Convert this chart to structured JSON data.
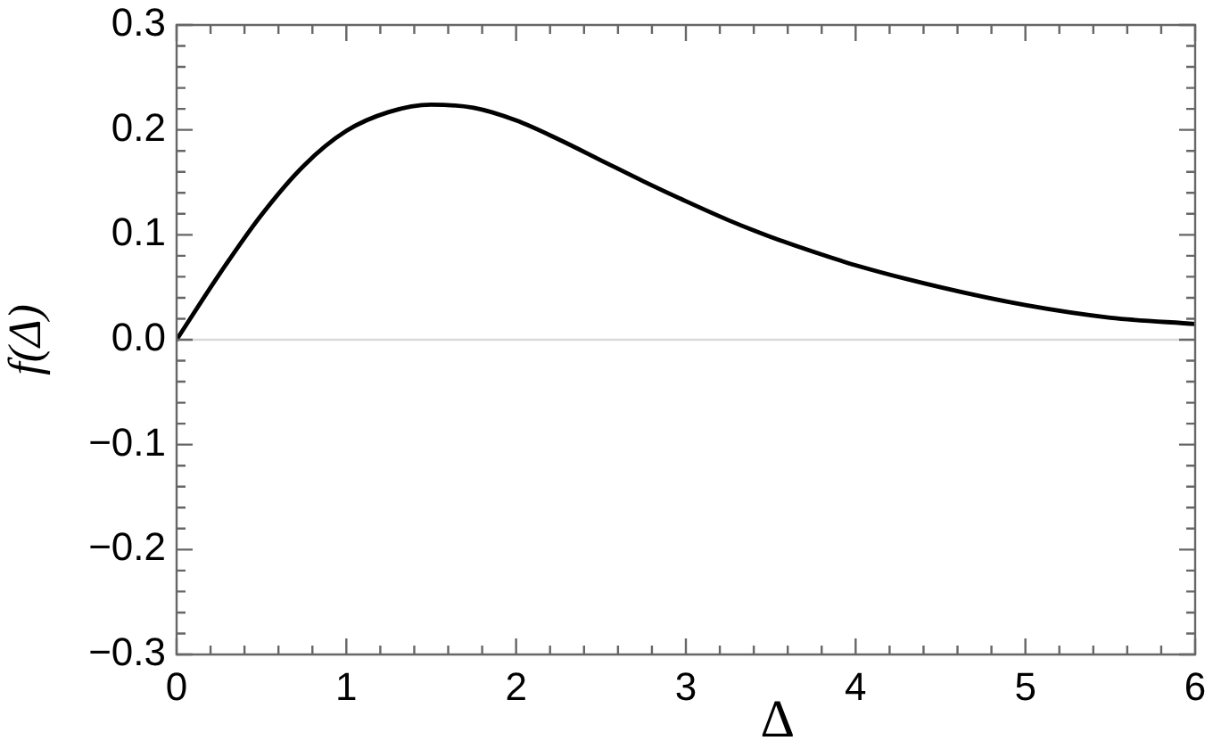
{
  "chart_data": {
    "type": "line",
    "xlabel": "Δ",
    "ylabel": "f(Δ)",
    "x": [
      0,
      0.25,
      0.5,
      0.75,
      1.0,
      1.25,
      1.5,
      1.75,
      2.0,
      2.25,
      2.5,
      2.75,
      3.0,
      3.25,
      3.5,
      3.75,
      4.0,
      4.5,
      5.0,
      5.5,
      6.0
    ],
    "series": [
      {
        "color": "#000000",
        "values": [
          0,
          0.062,
          0.119,
          0.166,
          0.199,
          0.217,
          0.224,
          0.221,
          0.209,
          0.191,
          0.171,
          0.151,
          0.132,
          0.114,
          0.098,
          0.084,
          0.071,
          0.05,
          0.033,
          0.021,
          0.015
        ]
      }
    ],
    "xlim": [
      0,
      6
    ],
    "ylim": [
      -0.3,
      0.3
    ],
    "xticks": [
      0,
      {
        "value": 0.2,
        "label": null
      },
      {
        "value": 0.4,
        "label": null
      },
      {
        "value": 0.6,
        "label": null
      },
      {
        "value": 0.8,
        "label": null
      },
      1,
      {
        "value": 1.2,
        "label": null
      },
      {
        "value": 1.4,
        "label": null
      },
      {
        "value": 1.6,
        "label": null
      },
      {
        "value": 1.8,
        "label": null
      },
      2,
      {
        "value": 2.2,
        "label": null
      },
      {
        "value": 2.4,
        "label": null
      },
      {
        "value": 2.6,
        "label": null
      },
      {
        "value": 2.8,
        "label": null
      },
      3,
      {
        "value": 3.2,
        "label": null
      },
      {
        "value": 3.4,
        "label": null
      },
      {
        "value": 3.6,
        "label": null
      },
      {
        "value": 3.8,
        "label": null
      },
      4,
      {
        "value": 4.2,
        "label": null
      },
      {
        "value": 4.4,
        "label": null
      },
      {
        "value": 4.6,
        "label": null
      },
      {
        "value": 4.8,
        "label": null
      },
      5,
      {
        "value": 5.2,
        "label": null
      },
      {
        "value": 5.4,
        "label": null
      },
      {
        "value": 5.6,
        "label": null
      },
      {
        "value": 5.8,
        "label": null
      },
      6
    ],
    "yticks": [
      {
        "value": -0.3,
        "label": "−0.3"
      },
      {
        "value": -0.28,
        "label": null
      },
      {
        "value": -0.26,
        "label": null
      },
      {
        "value": -0.24,
        "label": null
      },
      {
        "value": -0.22,
        "label": null
      },
      {
        "value": -0.2,
        "label": "−0.2"
      },
      {
        "value": -0.18,
        "label": null
      },
      {
        "value": -0.16,
        "label": null
      },
      {
        "value": -0.14,
        "label": null
      },
      {
        "value": -0.12,
        "label": null
      },
      {
        "value": -0.1,
        "label": "−0.1"
      },
      {
        "value": -0.08,
        "label": null
      },
      {
        "value": -0.06,
        "label": null
      },
      {
        "value": -0.04,
        "label": null
      },
      {
        "value": -0.02,
        "label": null
      },
      {
        "value": 0,
        "label": "0.0"
      },
      {
        "value": 0.02,
        "label": null
      },
      {
        "value": 0.04,
        "label": null
      },
      {
        "value": 0.06,
        "label": null
      },
      {
        "value": 0.08,
        "label": null
      },
      0.1,
      {
        "value": 0.12,
        "label": null
      },
      {
        "value": 0.14,
        "label": null
      },
      {
        "value": 0.16,
        "label": null
      },
      {
        "value": 0.18,
        "label": null
      },
      0.2,
      {
        "value": 0.22,
        "label": null
      },
      {
        "value": 0.24,
        "label": null
      },
      {
        "value": 0.26,
        "label": null
      },
      {
        "value": 0.28,
        "label": null
      },
      0.3
    ],
    "ref_lines": [
      {
        "axis": "y",
        "value": 0,
        "color": "#d9d9d9"
      }
    ],
    "marker": "none",
    "legend": false
  }
}
